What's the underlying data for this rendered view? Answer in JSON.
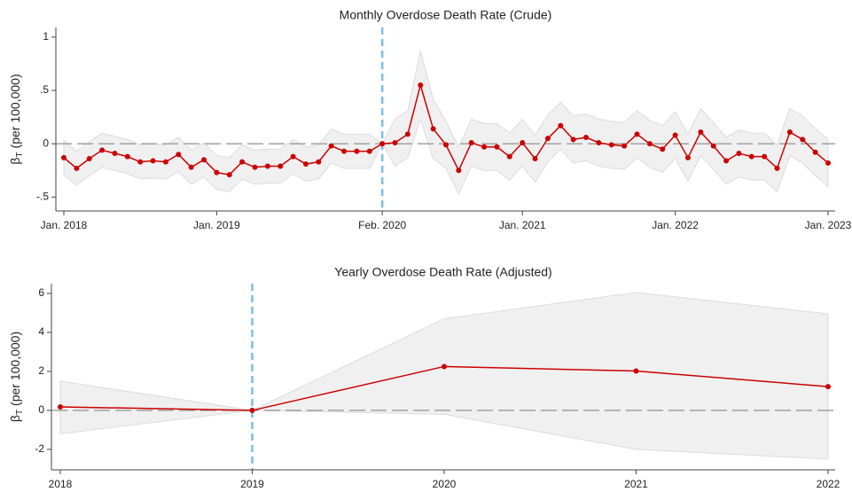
{
  "chart_data": [
    {
      "type": "line",
      "title": "Monthly Overdose Death Rate (Crude)",
      "ylabel_symbol": "β",
      "ylabel_subscript": "T",
      "ylabel_text": "(per 100,000)",
      "x": [
        "2018-01",
        "2018-02",
        "2018-03",
        "2018-04",
        "2018-05",
        "2018-06",
        "2018-07",
        "2018-08",
        "2018-09",
        "2018-10",
        "2018-11",
        "2018-12",
        "2019-01",
        "2019-02",
        "2019-03",
        "2019-04",
        "2019-05",
        "2019-06",
        "2019-07",
        "2019-08",
        "2019-09",
        "2019-10",
        "2019-11",
        "2019-12",
        "2020-01",
        "2020-02",
        "2020-03",
        "2020-04",
        "2020-05",
        "2020-06",
        "2020-07",
        "2020-08",
        "2020-09",
        "2020-10",
        "2020-11",
        "2020-12",
        "2021-01",
        "2021-02",
        "2021-03",
        "2021-04",
        "2021-05",
        "2021-06",
        "2021-07",
        "2021-08",
        "2021-09",
        "2021-10",
        "2021-11",
        "2021-12",
        "2022-01",
        "2022-02",
        "2022-03",
        "2022-04",
        "2022-05",
        "2022-06",
        "2022-07",
        "2022-08",
        "2022-09",
        "2022-10",
        "2022-11",
        "2022-12",
        "2023-01"
      ],
      "values": [
        -0.13,
        -0.23,
        -0.14,
        -0.06,
        -0.09,
        -0.12,
        -0.17,
        -0.16,
        -0.17,
        -0.1,
        -0.22,
        -0.15,
        -0.27,
        -0.29,
        -0.17,
        -0.22,
        -0.21,
        -0.21,
        -0.12,
        -0.19,
        -0.17,
        -0.02,
        -0.07,
        -0.07,
        -0.07,
        0,
        0.01,
        0.09,
        0.55,
        0.14,
        -0.01,
        -0.25,
        0.01,
        -0.03,
        -0.03,
        -0.12,
        0.01,
        -0.14,
        0.05,
        0.17,
        0.04,
        0.06,
        0.01,
        -0.01,
        -0.02,
        0.09,
        0,
        -0.05,
        0.08,
        -0.13,
        0.11,
        -0.02,
        -0.16,
        -0.09,
        -0.12,
        -0.12,
        -0.23,
        0.11,
        0.04,
        -0.08,
        -0.18
      ],
      "ci_upper": [
        0.03,
        -0.07,
        0.02,
        0.1,
        0.07,
        0.04,
        -0.01,
        0.0,
        -0.01,
        0.06,
        -0.06,
        0.01,
        -0.11,
        -0.13,
        -0.01,
        -0.06,
        -0.05,
        -0.05,
        0.04,
        -0.03,
        -0.01,
        0.14,
        0.09,
        0.09,
        0.09,
        0,
        0.23,
        0.31,
        0.87,
        0.42,
        0.21,
        -0.03,
        0.23,
        0.19,
        0.19,
        0.1,
        0.23,
        0.08,
        0.27,
        0.39,
        0.26,
        0.28,
        0.23,
        0.21,
        0.2,
        0.31,
        0.22,
        0.17,
        0.3,
        0.09,
        0.33,
        0.2,
        0.06,
        0.13,
        0.1,
        0.1,
        -0.01,
        0.33,
        0.26,
        0.14,
        0.04
      ],
      "ci_lower": [
        -0.29,
        -0.39,
        -0.3,
        -0.22,
        -0.25,
        -0.28,
        -0.33,
        -0.32,
        -0.33,
        -0.26,
        -0.38,
        -0.31,
        -0.43,
        -0.45,
        -0.33,
        -0.38,
        -0.37,
        -0.37,
        -0.28,
        -0.35,
        -0.33,
        -0.18,
        -0.23,
        -0.23,
        -0.23,
        0,
        -0.21,
        -0.13,
        0.23,
        -0.14,
        -0.23,
        -0.47,
        -0.21,
        -0.25,
        -0.25,
        -0.34,
        -0.21,
        -0.36,
        -0.17,
        -0.05,
        -0.18,
        -0.16,
        -0.21,
        -0.23,
        -0.24,
        -0.13,
        -0.22,
        -0.27,
        -0.14,
        -0.35,
        -0.11,
        -0.24,
        -0.38,
        -0.31,
        -0.34,
        -0.34,
        -0.45,
        -0.11,
        -0.18,
        -0.3,
        -0.4
      ],
      "color": "#cc0000",
      "band_color": "#f0f0f0",
      "ylim": [
        -0.63,
        1.09
      ],
      "yticks": [
        {
          "value": -0.5,
          "label": "-.5"
        },
        0,
        {
          "value": 0.5,
          "label": ".5"
        },
        1
      ],
      "xticks": [
        {
          "value": "2018-01",
          "label": "Jan. 2018"
        },
        {
          "value": "2019-01",
          "label": "Jan. 2019"
        },
        {
          "value": "2020-02",
          "label": "Feb. 2020"
        },
        {
          "value": "2021-01",
          "label": "Jan. 2021"
        },
        {
          "value": "2022-01",
          "label": "Jan. 2022"
        },
        {
          "value": "2023-01",
          "label": "Jan. 2023"
        }
      ],
      "vline": "2020-02",
      "vline_color": "#7dbce6",
      "hline": 0
    },
    {
      "type": "line",
      "title": "Yearly Overdose Death Rate (Adjusted)",
      "ylabel_symbol": "β",
      "ylabel_subscript": "T",
      "ylabel_text": "(per 100,000)",
      "x": [
        2018,
        2019,
        2020,
        2021,
        2022
      ],
      "values": [
        0.18,
        0,
        2.25,
        2.02,
        1.22
      ],
      "ci_upper": [
        1.5,
        0,
        4.7,
        6.05,
        4.95
      ],
      "ci_lower": [
        -1.2,
        0,
        -0.2,
        -2.0,
        -2.5
      ],
      "color": "#cc0000",
      "band_color": "#f0f0f0",
      "xlim": [
        2018,
        2022
      ],
      "xticks": [
        2018,
        2019,
        2020,
        2021,
        2022
      ],
      "ylim": [
        -3.05,
        6.5
      ],
      "yticks": [
        -2,
        0,
        2,
        4,
        6
      ],
      "vline": 2019,
      "vline_color": "#7dbce6",
      "hline": 0
    }
  ]
}
